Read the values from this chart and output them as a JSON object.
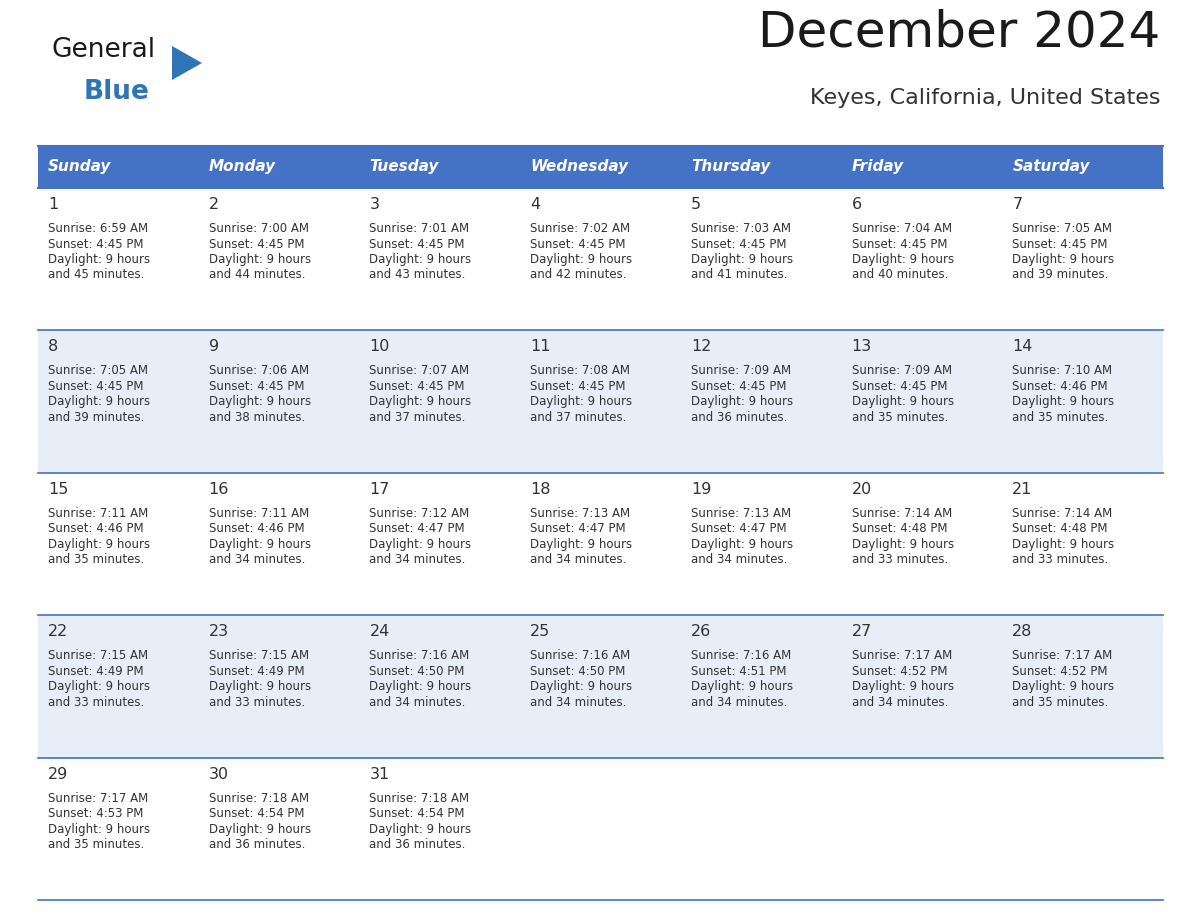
{
  "title": "December 2024",
  "subtitle": "Keyes, California, United States",
  "header_bg_color": "#4472C4",
  "header_text_color": "#FFFFFF",
  "day_names": [
    "Sunday",
    "Monday",
    "Tuesday",
    "Wednesday",
    "Thursday",
    "Friday",
    "Saturday"
  ],
  "row0_bg": "#FFFFFF",
  "row1_bg": "#E8EEF7",
  "row2_bg": "#FFFFFF",
  "row3_bg": "#E8EEF7",
  "row4_bg": "#FFFFFF",
  "cell_text_color": "#333333",
  "grid_color": "#4472C4",
  "title_color": "#1a1a1a",
  "subtitle_color": "#333333",
  "calendar_data": [
    [
      {
        "day": 1,
        "sunrise": "6:59 AM",
        "sunset": "4:45 PM",
        "daylight": "9 hours and 45 minutes."
      },
      {
        "day": 2,
        "sunrise": "7:00 AM",
        "sunset": "4:45 PM",
        "daylight": "9 hours and 44 minutes."
      },
      {
        "day": 3,
        "sunrise": "7:01 AM",
        "sunset": "4:45 PM",
        "daylight": "9 hours and 43 minutes."
      },
      {
        "day": 4,
        "sunrise": "7:02 AM",
        "sunset": "4:45 PM",
        "daylight": "9 hours and 42 minutes."
      },
      {
        "day": 5,
        "sunrise": "7:03 AM",
        "sunset": "4:45 PM",
        "daylight": "9 hours and 41 minutes."
      },
      {
        "day": 6,
        "sunrise": "7:04 AM",
        "sunset": "4:45 PM",
        "daylight": "9 hours and 40 minutes."
      },
      {
        "day": 7,
        "sunrise": "7:05 AM",
        "sunset": "4:45 PM",
        "daylight": "9 hours and 39 minutes."
      }
    ],
    [
      {
        "day": 8,
        "sunrise": "7:05 AM",
        "sunset": "4:45 PM",
        "daylight": "9 hours and 39 minutes."
      },
      {
        "day": 9,
        "sunrise": "7:06 AM",
        "sunset": "4:45 PM",
        "daylight": "9 hours and 38 minutes."
      },
      {
        "day": 10,
        "sunrise": "7:07 AM",
        "sunset": "4:45 PM",
        "daylight": "9 hours and 37 minutes."
      },
      {
        "day": 11,
        "sunrise": "7:08 AM",
        "sunset": "4:45 PM",
        "daylight": "9 hours and 37 minutes."
      },
      {
        "day": 12,
        "sunrise": "7:09 AM",
        "sunset": "4:45 PM",
        "daylight": "9 hours and 36 minutes."
      },
      {
        "day": 13,
        "sunrise": "7:09 AM",
        "sunset": "4:45 PM",
        "daylight": "9 hours and 35 minutes."
      },
      {
        "day": 14,
        "sunrise": "7:10 AM",
        "sunset": "4:46 PM",
        "daylight": "9 hours and 35 minutes."
      }
    ],
    [
      {
        "day": 15,
        "sunrise": "7:11 AM",
        "sunset": "4:46 PM",
        "daylight": "9 hours and 35 minutes."
      },
      {
        "day": 16,
        "sunrise": "7:11 AM",
        "sunset": "4:46 PM",
        "daylight": "9 hours and 34 minutes."
      },
      {
        "day": 17,
        "sunrise": "7:12 AM",
        "sunset": "4:47 PM",
        "daylight": "9 hours and 34 minutes."
      },
      {
        "day": 18,
        "sunrise": "7:13 AM",
        "sunset": "4:47 PM",
        "daylight": "9 hours and 34 minutes."
      },
      {
        "day": 19,
        "sunrise": "7:13 AM",
        "sunset": "4:47 PM",
        "daylight": "9 hours and 34 minutes."
      },
      {
        "day": 20,
        "sunrise": "7:14 AM",
        "sunset": "4:48 PM",
        "daylight": "9 hours and 33 minutes."
      },
      {
        "day": 21,
        "sunrise": "7:14 AM",
        "sunset": "4:48 PM",
        "daylight": "9 hours and 33 minutes."
      }
    ],
    [
      {
        "day": 22,
        "sunrise": "7:15 AM",
        "sunset": "4:49 PM",
        "daylight": "9 hours and 33 minutes."
      },
      {
        "day": 23,
        "sunrise": "7:15 AM",
        "sunset": "4:49 PM",
        "daylight": "9 hours and 33 minutes."
      },
      {
        "day": 24,
        "sunrise": "7:16 AM",
        "sunset": "4:50 PM",
        "daylight": "9 hours and 34 minutes."
      },
      {
        "day": 25,
        "sunrise": "7:16 AM",
        "sunset": "4:50 PM",
        "daylight": "9 hours and 34 minutes."
      },
      {
        "day": 26,
        "sunrise": "7:16 AM",
        "sunset": "4:51 PM",
        "daylight": "9 hours and 34 minutes."
      },
      {
        "day": 27,
        "sunrise": "7:17 AM",
        "sunset": "4:52 PM",
        "daylight": "9 hours and 34 minutes."
      },
      {
        "day": 28,
        "sunrise": "7:17 AM",
        "sunset": "4:52 PM",
        "daylight": "9 hours and 35 minutes."
      }
    ],
    [
      {
        "day": 29,
        "sunrise": "7:17 AM",
        "sunset": "4:53 PM",
        "daylight": "9 hours and 35 minutes."
      },
      {
        "day": 30,
        "sunrise": "7:18 AM",
        "sunset": "4:54 PM",
        "daylight": "9 hours and 36 minutes."
      },
      {
        "day": 31,
        "sunrise": "7:18 AM",
        "sunset": "4:54 PM",
        "daylight": "9 hours and 36 minutes."
      },
      null,
      null,
      null,
      null
    ]
  ]
}
